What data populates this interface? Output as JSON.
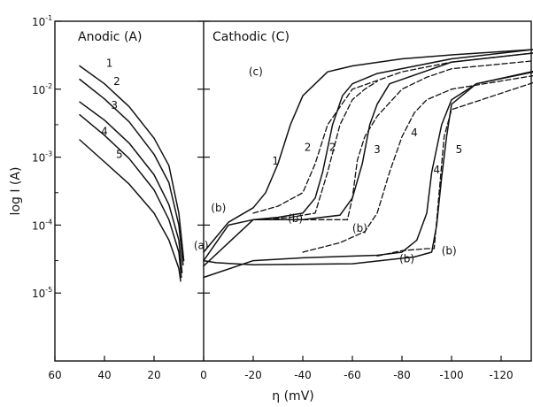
{
  "chart_data": {
    "type": "line",
    "xlabel": "η (mV)",
    "ylabel": "log I (A)",
    "regions": [
      {
        "label": "Anodic (A)",
        "x_range": [
          60,
          0
        ]
      },
      {
        "label": "Cathodic (C)",
        "x_range": [
          0,
          -150
        ]
      }
    ],
    "x_ticks": [
      60,
      40,
      20,
      0,
      -20,
      -40,
      -60,
      -80,
      -100,
      -120,
      -140
    ],
    "x_tick_labels": [
      "60",
      "40",
      "20",
      "0",
      "-20",
      "-40",
      "-60",
      "-80",
      "-100",
      "-120",
      "-140"
    ],
    "xlim": [
      60,
      -150
    ],
    "yscale": "log",
    "ylim": [
      1e-06,
      0.1
    ],
    "y_ticks": [
      {
        "base": "10",
        "exp": "-1",
        "value": 0.1
      },
      {
        "base": "10",
        "exp": "-2",
        "value": 0.01
      },
      {
        "base": "10",
        "exp": "-3",
        "value": 0.001
      },
      {
        "base": "10",
        "exp": "-4",
        "value": 0.0001
      },
      {
        "base": "10",
        "exp": "-5",
        "value": 1e-05
      }
    ],
    "grid": false,
    "series": [
      {
        "name": "1",
        "branch": "anodic",
        "style": "solid",
        "x": [
          50,
          40,
          30,
          20,
          14,
          10,
          8
        ],
        "y": [
          0.022,
          0.012,
          0.0055,
          0.0019,
          0.00075,
          0.00015,
          3e-05
        ]
      },
      {
        "name": "2",
        "branch": "anodic",
        "style": "solid",
        "x": [
          50,
          40,
          30,
          20,
          14,
          10,
          8.3
        ],
        "y": [
          0.014,
          0.0072,
          0.0033,
          0.0011,
          0.00042,
          0.0001,
          2.6e-05
        ]
      },
      {
        "name": "3",
        "branch": "anodic",
        "style": "solid",
        "x": [
          50,
          40,
          30,
          20,
          14,
          10,
          8.7
        ],
        "y": [
          0.0065,
          0.0035,
          0.0016,
          0.00055,
          0.0002,
          6e-05,
          2e-05
        ]
      },
      {
        "name": "4",
        "branch": "anodic",
        "style": "solid",
        "x": [
          50,
          40,
          30,
          20,
          14,
          10,
          9
        ],
        "y": [
          0.0042,
          0.0021,
          0.00095,
          0.00033,
          0.00012,
          4e-05,
          1.7e-05
        ]
      },
      {
        "name": "5",
        "branch": "anodic",
        "style": "solid",
        "x": [
          50,
          40,
          30,
          20,
          14,
          10,
          9.3
        ],
        "y": [
          0.0018,
          0.00085,
          0.0004,
          0.00015,
          6e-05,
          2.3e-05,
          1.5e-05
        ]
      },
      {
        "name": "1",
        "branch": "cathodic",
        "style": "solid",
        "x": [
          0,
          -10,
          -20,
          -25,
          -30,
          -35,
          -40,
          -50,
          -60,
          -80,
          -100,
          -150
        ],
        "y": [
          4e-05,
          0.00011,
          0.00018,
          0.0003,
          0.0008,
          0.003,
          0.008,
          0.018,
          0.022,
          0.028,
          0.032,
          0.042
        ]
      },
      {
        "name": "2",
        "branch": "cathodic",
        "style": "solid",
        "x": [
          0,
          -10,
          -20,
          -30,
          -40,
          -45,
          -48,
          -52,
          -56,
          -60,
          -70,
          -100,
          -150
        ],
        "y": [
          3e-05,
          0.0001,
          0.00012,
          0.00013,
          0.00015,
          0.00025,
          0.0006,
          0.003,
          0.008,
          0.012,
          0.017,
          0.028,
          0.045
        ]
      },
      {
        "name": "3",
        "branch": "cathodic",
        "style": "solid",
        "x": [
          0,
          -20,
          -40,
          -55,
          -60,
          -64,
          -67,
          -70,
          -75,
          -100,
          -150
        ],
        "y": [
          2.5e-05,
          0.00012,
          0.00012,
          0.00014,
          0.00025,
          0.0008,
          0.003,
          0.006,
          0.012,
          0.025,
          0.04
        ]
      },
      {
        "name": "4",
        "branch": "cathodic",
        "style": "solid",
        "x": [
          0,
          -20,
          -40,
          -70,
          -80,
          -86,
          -90,
          -92,
          -96,
          -100,
          -110,
          -150
        ],
        "y": [
          1.7e-05,
          3e-05,
          3.3e-05,
          3.6e-05,
          4e-05,
          6e-05,
          0.00015,
          0.0006,
          0.003,
          0.007,
          0.012,
          0.025
        ]
      },
      {
        "name": "5",
        "branch": "cathodic",
        "style": "solid",
        "x": [
          0,
          -5,
          -20,
          -60,
          -85,
          -92,
          -94,
          -96,
          -98,
          -100,
          -110,
          -150
        ],
        "y": [
          3e-05,
          2.8e-05,
          2.6e-05,
          2.7e-05,
          3.4e-05,
          4e-05,
          0.0001,
          0.0005,
          0.002,
          0.006,
          0.012,
          0.024
        ]
      },
      {
        "name": "1",
        "branch": "cathodic",
        "style": "dashed",
        "x": [
          -20,
          -30,
          -40,
          -45,
          -50,
          -60,
          -80,
          -100,
          -150
        ],
        "y": [
          0.00015,
          0.00019,
          0.0003,
          0.0008,
          0.003,
          0.01,
          0.018,
          0.025,
          0.04
        ]
      },
      {
        "name": "2",
        "branch": "cathodic",
        "style": "dashed",
        "x": [
          -25,
          -35,
          -45,
          -50,
          -55,
          -60,
          -65,
          -70
        ],
        "y": [
          0.00012,
          0.00013,
          0.00015,
          0.0006,
          0.003,
          0.007,
          0.01,
          0.013
        ]
      },
      {
        "name": "3",
        "branch": "cathodic",
        "style": "dashed",
        "x": [
          -40,
          -58,
          -60,
          -62,
          -65,
          -70,
          -80,
          -90,
          -100,
          -150
        ],
        "y": [
          0.00012,
          0.00012,
          0.00025,
          0.0009,
          0.002,
          0.004,
          0.01,
          0.015,
          0.02,
          0.03
        ]
      },
      {
        "name": "4",
        "branch": "cathodic",
        "style": "dashed",
        "x": [
          -40,
          -55,
          -65,
          -70,
          -75,
          -80,
          -85,
          -90,
          -100,
          -150
        ],
        "y": [
          4e-05,
          5.5e-05,
          8e-05,
          0.00015,
          0.0006,
          0.002,
          0.0045,
          0.007,
          0.01,
          0.02
        ]
      },
      {
        "name": "5",
        "branch": "cathodic",
        "style": "dashed",
        "x": [
          -70,
          -80,
          -90,
          -93,
          -95,
          -97,
          -100,
          -150
        ],
        "y": [
          3.5e-05,
          4.2e-05,
          4.5e-05,
          4.5e-05,
          0.0003,
          0.002,
          0.005,
          0.02
        ]
      }
    ],
    "annotations": [
      {
        "text": "(a)",
        "x": 1,
        "y": 5e-05
      },
      {
        "text": "(b)",
        "x": -6,
        "y": 0.00018
      },
      {
        "text": "(b)",
        "x": -37,
        "y": 0.000125
      },
      {
        "text": "(b)",
        "x": -63,
        "y": 9e-05
      },
      {
        "text": "(b)",
        "x": -82,
        "y": 3.2e-05
      },
      {
        "text": "(b)",
        "x": -99,
        "y": 4.2e-05
      },
      {
        "text": "(c)",
        "x": -21,
        "y": 0.018
      },
      {
        "text": "1",
        "x": 38,
        "y": 0.024
      },
      {
        "text": "2",
        "x": 35,
        "y": 0.013
      },
      {
        "text": "3",
        "x": 36,
        "y": 0.0058
      },
      {
        "text": "4",
        "x": 40,
        "y": 0.0024
      },
      {
        "text": "5",
        "x": 34,
        "y": 0.0011
      },
      {
        "text": "1",
        "x": -29,
        "y": 0.00087
      },
      {
        "text": "2",
        "x": -42,
        "y": 0.0014
      },
      {
        "text": "2",
        "x": -52,
        "y": 0.0014
      },
      {
        "text": "3",
        "x": -70,
        "y": 0.0013
      },
      {
        "text": "4",
        "x": -85,
        "y": 0.0023
      },
      {
        "text": "4",
        "x": -94,
        "y": 0.00065
      },
      {
        "text": "5",
        "x": -103,
        "y": 0.0013
      }
    ]
  }
}
